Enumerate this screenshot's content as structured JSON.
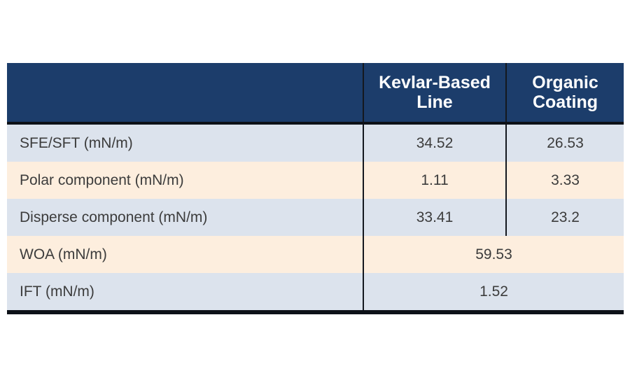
{
  "table": {
    "header": {
      "label_col": "",
      "col_kevlar": "Kevlar-Based Line",
      "col_organic": "Organic Coating"
    },
    "rows": [
      {
        "label": "SFE/SFT (mN/m)",
        "kevlar": "34.52",
        "organic": "26.53"
      },
      {
        "label": "Polar component (mN/m)",
        "kevlar": "1.11",
        "organic": "3.33"
      },
      {
        "label": "Disperse component (mN/m)",
        "kevlar": "33.41",
        "organic": "23.2"
      },
      {
        "label": "WOA (mN/m)",
        "merged": "59.53"
      },
      {
        "label": "IFT (mN/m)",
        "merged": "1.52"
      }
    ],
    "colors": {
      "header_bg": "#1c3d6b",
      "header_text": "#ffffff",
      "row_blue": "#dce3ed",
      "row_cream": "#fdeede",
      "divider": "#14181f",
      "bottom_border": "#0d1118",
      "body_text": "#3c3c3c"
    }
  },
  "chart_data": {
    "type": "table",
    "title": "",
    "columns": [
      "",
      "Kevlar-Based Line",
      "Organic Coating"
    ],
    "rows": [
      {
        "label": "SFE/SFT (mN/m)",
        "kevlar_based_line": 34.52,
        "organic_coating": 26.53
      },
      {
        "label": "Polar component (mN/m)",
        "kevlar_based_line": 1.11,
        "organic_coating": 3.33
      },
      {
        "label": "Disperse component (mN/m)",
        "kevlar_based_line": 33.41,
        "organic_coating": 23.2
      },
      {
        "label": "WOA (mN/m)",
        "merged_value": 59.53,
        "colspan": 2
      },
      {
        "label": "IFT (mN/m)",
        "merged_value": 1.52,
        "colspan": 2
      }
    ],
    "layout_hints": {
      "merged_rows_span_both_value_columns": true,
      "second_column_divider_ends_after_row": "Disperse component (mN/m)",
      "alternating_row_colors": [
        "blue-gray",
        "cream"
      ]
    }
  }
}
